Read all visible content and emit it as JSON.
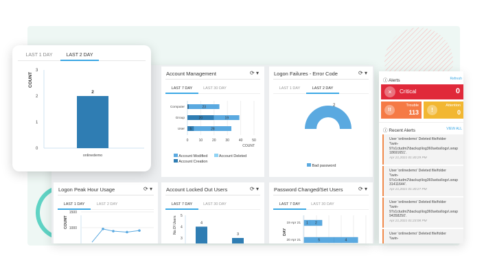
{
  "colors": {
    "accent": "#3aa7e4",
    "dark_bar": "#2f7db3",
    "mid_bar": "#5aa9e0",
    "light_bar": "#8fd3f4",
    "critical": "#e0293a",
    "trouble": "#f57a45",
    "attention": "#f2b732"
  },
  "card": {
    "tabs": [
      "LAST 1 DAY",
      "LAST 2 DAY"
    ],
    "active": 1,
    "ylabel": "COUNT",
    "yticks": [
      "0",
      "1",
      "2",
      "3"
    ],
    "bar": {
      "label": "onlinedemo",
      "value": 2,
      "value_label": "2"
    },
    "ymax": 3
  },
  "account_mgmt": {
    "title": "Account Management",
    "tabs": [
      "LAST 7 DAY",
      "LAST 30 DAY"
    ],
    "rows": [
      {
        "label": "Computer",
        "segments": [
          {
            "v": 1,
            "s": "creation"
          },
          {
            "v": 23,
            "s": "modified"
          }
        ]
      },
      {
        "label": "Group",
        "segments": [
          {
            "v": 20,
            "s": "creation"
          },
          {
            "v": 19,
            "s": "modified"
          }
        ]
      },
      {
        "label": "User",
        "segments": [
          {
            "v": 5,
            "s": "creation"
          },
          {
            "v": 28,
            "s": "modified"
          }
        ]
      }
    ],
    "xticks": [
      "0",
      "10",
      "20",
      "30",
      "40",
      "50"
    ],
    "xmax": 50,
    "xlabel": "COUNT",
    "legend": {
      "modified": "Account Modified",
      "deleted": "Account Deleted",
      "creation": "Account Creation"
    }
  },
  "logon_failures": {
    "title": "Logon Failures - Error Code",
    "tabs": [
      "LAST 1 DAY",
      "LAST 2 DAY"
    ],
    "value_label": "2",
    "legend": "Bad password"
  },
  "peak": {
    "title": "Logon Peak Hour Usage",
    "tabs": [
      "LAST 1 DAY",
      "LAST 2 DAY"
    ],
    "ylabel": "COUNT",
    "yticks": [
      "1500",
      "1000"
    ],
    "values": [
      540,
      960,
      890,
      860,
      910
    ]
  },
  "locked": {
    "title": "Account Locked Out Users",
    "tabs": [
      "LAST 7 DAY",
      "LAST 30 DAY"
    ],
    "ylabel": "No.Of Users",
    "yticks": [
      "5",
      "4",
      "3"
    ],
    "bars": [
      {
        "value": 4,
        "label": "4"
      },
      {
        "value": 3,
        "label": "3"
      }
    ]
  },
  "password": {
    "title": "Password Changed/Set Users",
    "tabs": [
      "LAST 7 DAY",
      "LAST 30 DAY"
    ],
    "ylabel": "DAY",
    "rows": [
      {
        "label": "19 Apr 21",
        "segments": [
          1,
          2
        ]
      },
      {
        "label": "20 Apr 21",
        "segments": [
          5,
          4
        ]
      }
    ]
  },
  "alerts": {
    "title": "Alerts",
    "refresh": "Refresh",
    "critical": {
      "label": "Critical",
      "count": "0"
    },
    "trouble": {
      "label": "Trouble",
      "count": "113"
    },
    "attention": {
      "label": "Attention",
      "count": "0"
    },
    "recent_title": "Recent Alerts",
    "view_all": "VIEW ALL",
    "items": [
      {
        "l1": "User 'onlinedemo' Deleted file/folder",
        "l2": "'\\\\win-",
        "l3": "97s1ctudm2\\backup\\log360ueba\\logs\\.wrap",
        "l4": "18691651'.",
        "time": "Apr 21,2021 01:40:29 PM"
      },
      {
        "l1": "User 'onlinedemo' Deleted file/folder",
        "l2": "'\\\\win-",
        "l3": "97s1ctudm2\\backup\\log360ueba\\logs\\.wrap",
        "l4": "31411644'.",
        "time": "Apr 21,2021 01:40:27 PM"
      },
      {
        "l1": "User 'onlinedemo' Deleted file/folder",
        "l2": "'\\\\win-",
        "l3": "97s1ctudm2\\backup\\log360ueba\\logs\\.wrap",
        "l4": "94358250'.",
        "time": "Apr 21,2021 01:23:08 PM"
      },
      {
        "l1": "User 'onlinedemo' Deleted file/folder",
        "l2": "'\\\\win-",
        "l3": "",
        "l4": "",
        "time": ""
      }
    ]
  }
}
